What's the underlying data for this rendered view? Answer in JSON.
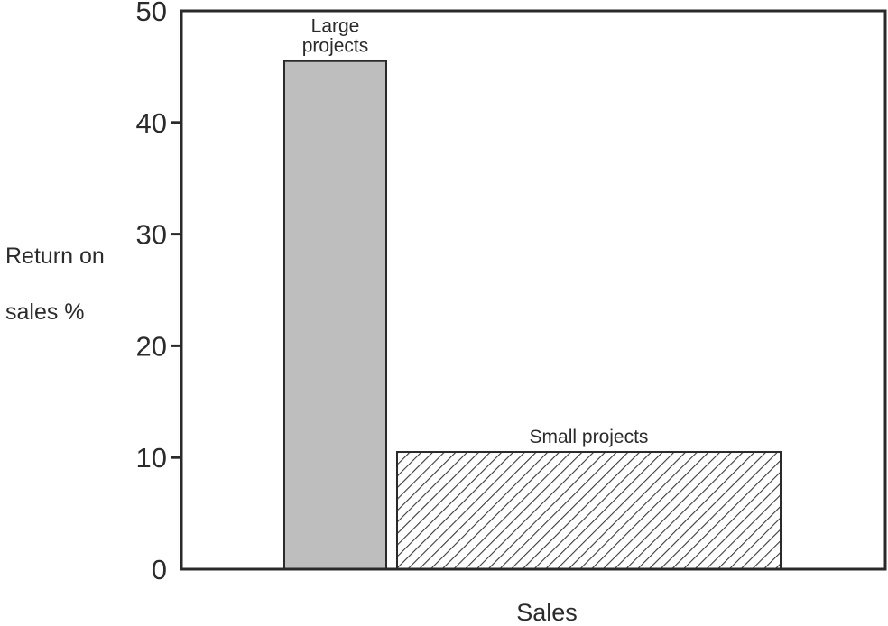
{
  "chart_data": {
    "type": "bar",
    "title": "",
    "xlabel": "Sales",
    "ylabel": "Return on sales %",
    "ylabel_lines": [
      "Return on",
      "sales %"
    ],
    "ylim": [
      0,
      50
    ],
    "yticks": [
      "0",
      "10",
      "20",
      "30",
      "40",
      "50"
    ],
    "ytick_values": [
      0,
      10,
      20,
      30,
      40,
      50
    ],
    "bar_width_note": "bar width is proportional to share of sales",
    "categories": [
      "Large projects",
      "Small projects"
    ],
    "series": [
      {
        "values": [
          45.5,
          10.5
        ]
      }
    ],
    "bar_labels": [
      [
        "Large",
        "projects"
      ],
      [
        "Small projects"
      ]
    ],
    "bar_styles": [
      "solid-gray",
      "diagonal-hatch"
    ],
    "grid": false,
    "legend": "none"
  },
  "colors": {
    "axis": "#2a2a2a",
    "bar_fill_gray": "#bebebe",
    "hatch": "#3a3a3a",
    "text": "#2b2b2b"
  }
}
